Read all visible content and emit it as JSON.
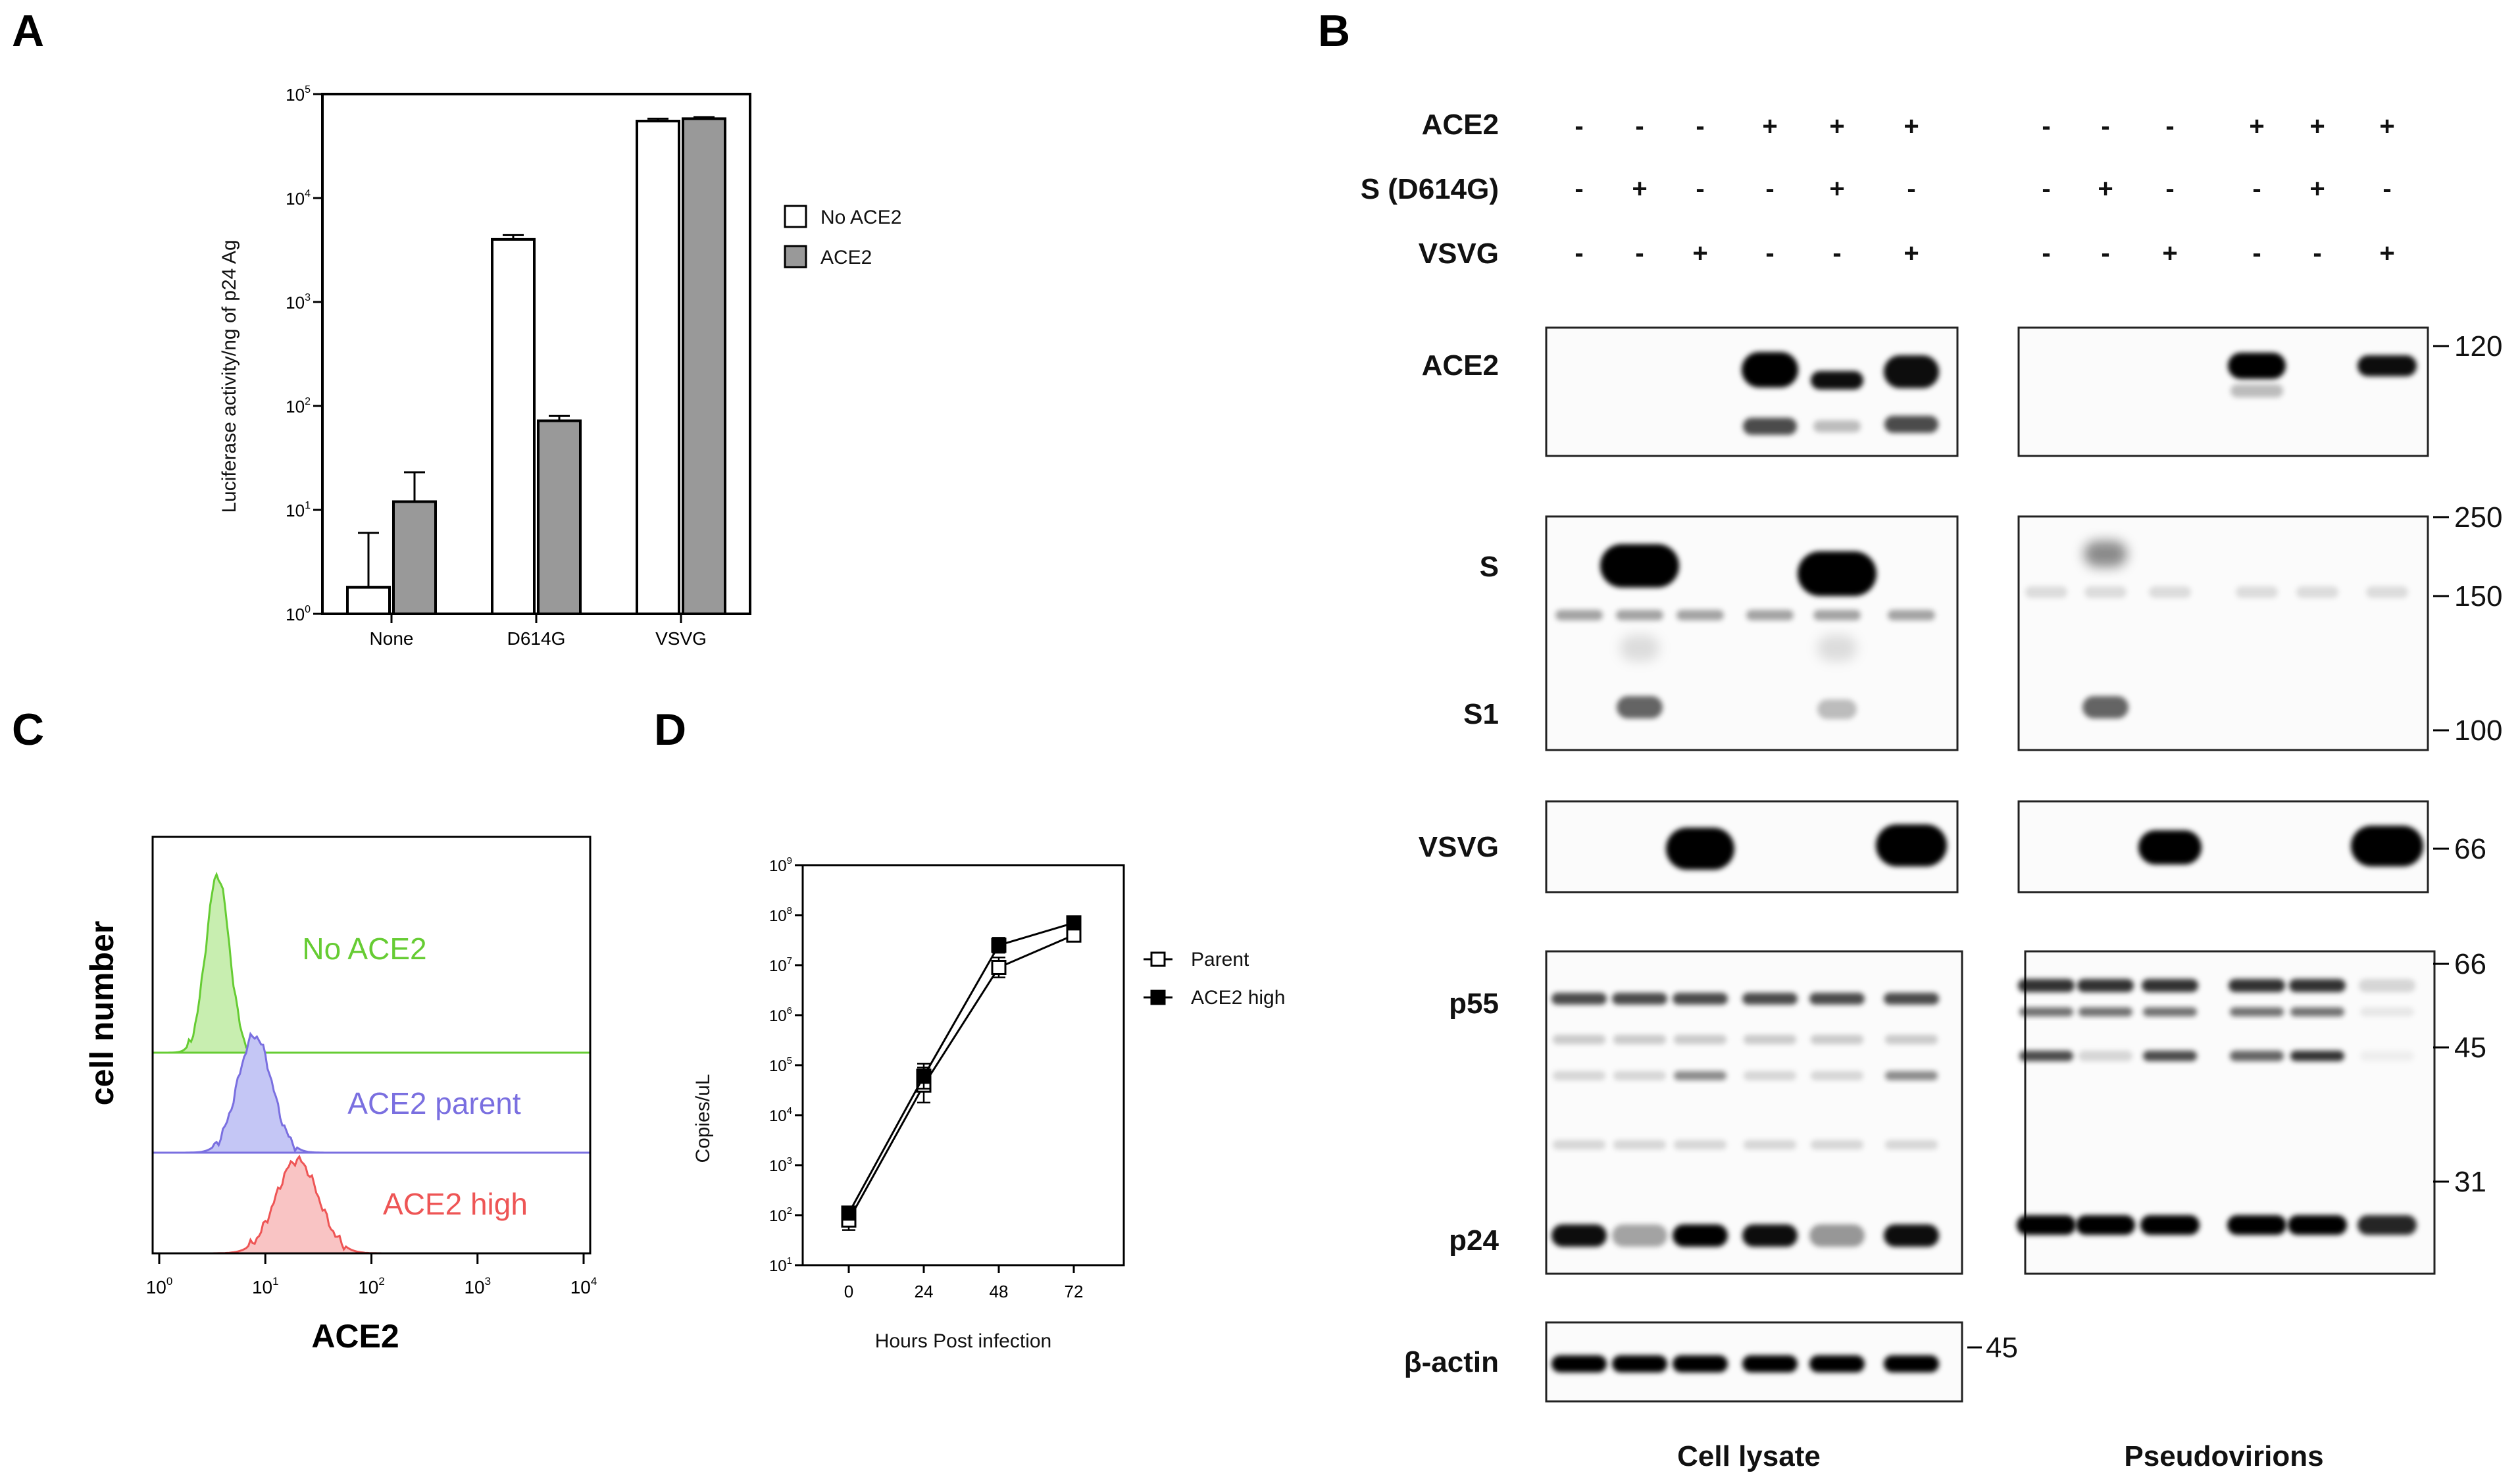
{
  "panels": {
    "A": {
      "label": "A",
      "chart_data": {
        "type": "bar",
        "categories": [
          "None",
          "D614G",
          "VSVG"
        ],
        "series": [
          {
            "name": "No ACE2",
            "values": [
              1.8,
              4000,
              55000
            ],
            "error": [
              4.2,
              400,
              3000
            ],
            "color": "#ffffff"
          },
          {
            "name": "ACE2",
            "values": [
              12,
              72,
              58000
            ],
            "error": [
              11,
              8,
              2000
            ],
            "color": "#999999"
          }
        ],
        "ylabel": "Luciferase activity/ng of p24 Ag",
        "yscale": "log",
        "ylim": [
          1,
          100000
        ],
        "ytick_base": "10",
        "yticks": [
          {
            "exp": "0"
          },
          {
            "exp": "1"
          },
          {
            "exp": "2"
          },
          {
            "exp": "3"
          },
          {
            "exp": "4"
          },
          {
            "exp": "5"
          }
        ],
        "legend": "right"
      }
    },
    "B": {
      "label": "B",
      "conditions": [
        {
          "name": "ACE2",
          "cl": [
            "-",
            "-",
            "-",
            "+",
            "+",
            "+"
          ],
          "pv": [
            "-",
            "-",
            "-",
            "+",
            "+",
            "+"
          ]
        },
        {
          "name": "S (D614G)",
          "cl": [
            "-",
            "+",
            "-",
            "-",
            "+",
            "-"
          ],
          "pv": [
            "-",
            "+",
            "-",
            "-",
            "+",
            "-"
          ]
        },
        {
          "name": "VSVG",
          "cl": [
            "-",
            "-",
            "+",
            "-",
            "-",
            "+"
          ],
          "pv": [
            "-",
            "-",
            "+",
            "-",
            "-",
            "+"
          ]
        }
      ],
      "blot_labels": {
        "ace2": "ACE2",
        "s": "S",
        "s1": "S1",
        "vsvg": "VSVG",
        "p55": "p55",
        "p24": "p24",
        "actin": "β-actin"
      },
      "markers": {
        "ace2": [
          "120"
        ],
        "s": [
          "250",
          "150",
          "100"
        ],
        "vsvg": [
          "66"
        ],
        "gag": [
          "66",
          "45",
          "31"
        ],
        "actin": [
          "45"
        ]
      },
      "groups": {
        "cell_lysate": "Cell lysate",
        "pseudovirions": "Pseudovirions"
      }
    },
    "C": {
      "label": "C",
      "ylabel": "cell number",
      "xlabel": "ACE2",
      "xtick_base": "10",
      "xticks": [
        {
          "exp": "0"
        },
        {
          "exp": "1"
        },
        {
          "exp": "2"
        },
        {
          "exp": "3"
        },
        {
          "exp": "4"
        }
      ],
      "histograms": [
        {
          "name": "No ACE2",
          "color": "#66cc33",
          "fill": "#c8eeb0"
        },
        {
          "name": "ACE2 parent",
          "color": "#7a6fe0",
          "fill": "#c4c6f5"
        },
        {
          "name": "ACE2 high",
          "color": "#ee5555",
          "fill": "#f9c4c4"
        }
      ]
    },
    "D": {
      "label": "D",
      "chart_data": {
        "type": "line",
        "x": [
          0,
          24,
          48,
          72
        ],
        "series": [
          {
            "name": "Parent",
            "values": [
              80,
              40000,
              9000000,
              40000000
            ],
            "marker": "open-square"
          },
          {
            "name": "ACE2 high",
            "values": [
              110,
              60000,
              25000000,
              70000000
            ],
            "marker": "filled-square"
          }
        ],
        "xlabel": "Hours Post infection",
        "ylabel": "Copies/uL",
        "yscale": "log",
        "ylim": [
          10,
          1000000000
        ],
        "ytick_base": "10",
        "yticks": [
          {
            "exp": "1"
          },
          {
            "exp": "2"
          },
          {
            "exp": "3"
          },
          {
            "exp": "4"
          },
          {
            "exp": "5"
          },
          {
            "exp": "6"
          },
          {
            "exp": "7"
          },
          {
            "exp": "8"
          },
          {
            "exp": "9"
          }
        ],
        "xticks": [
          "0",
          "24",
          "48",
          "72"
        ],
        "legend": "right"
      }
    }
  }
}
